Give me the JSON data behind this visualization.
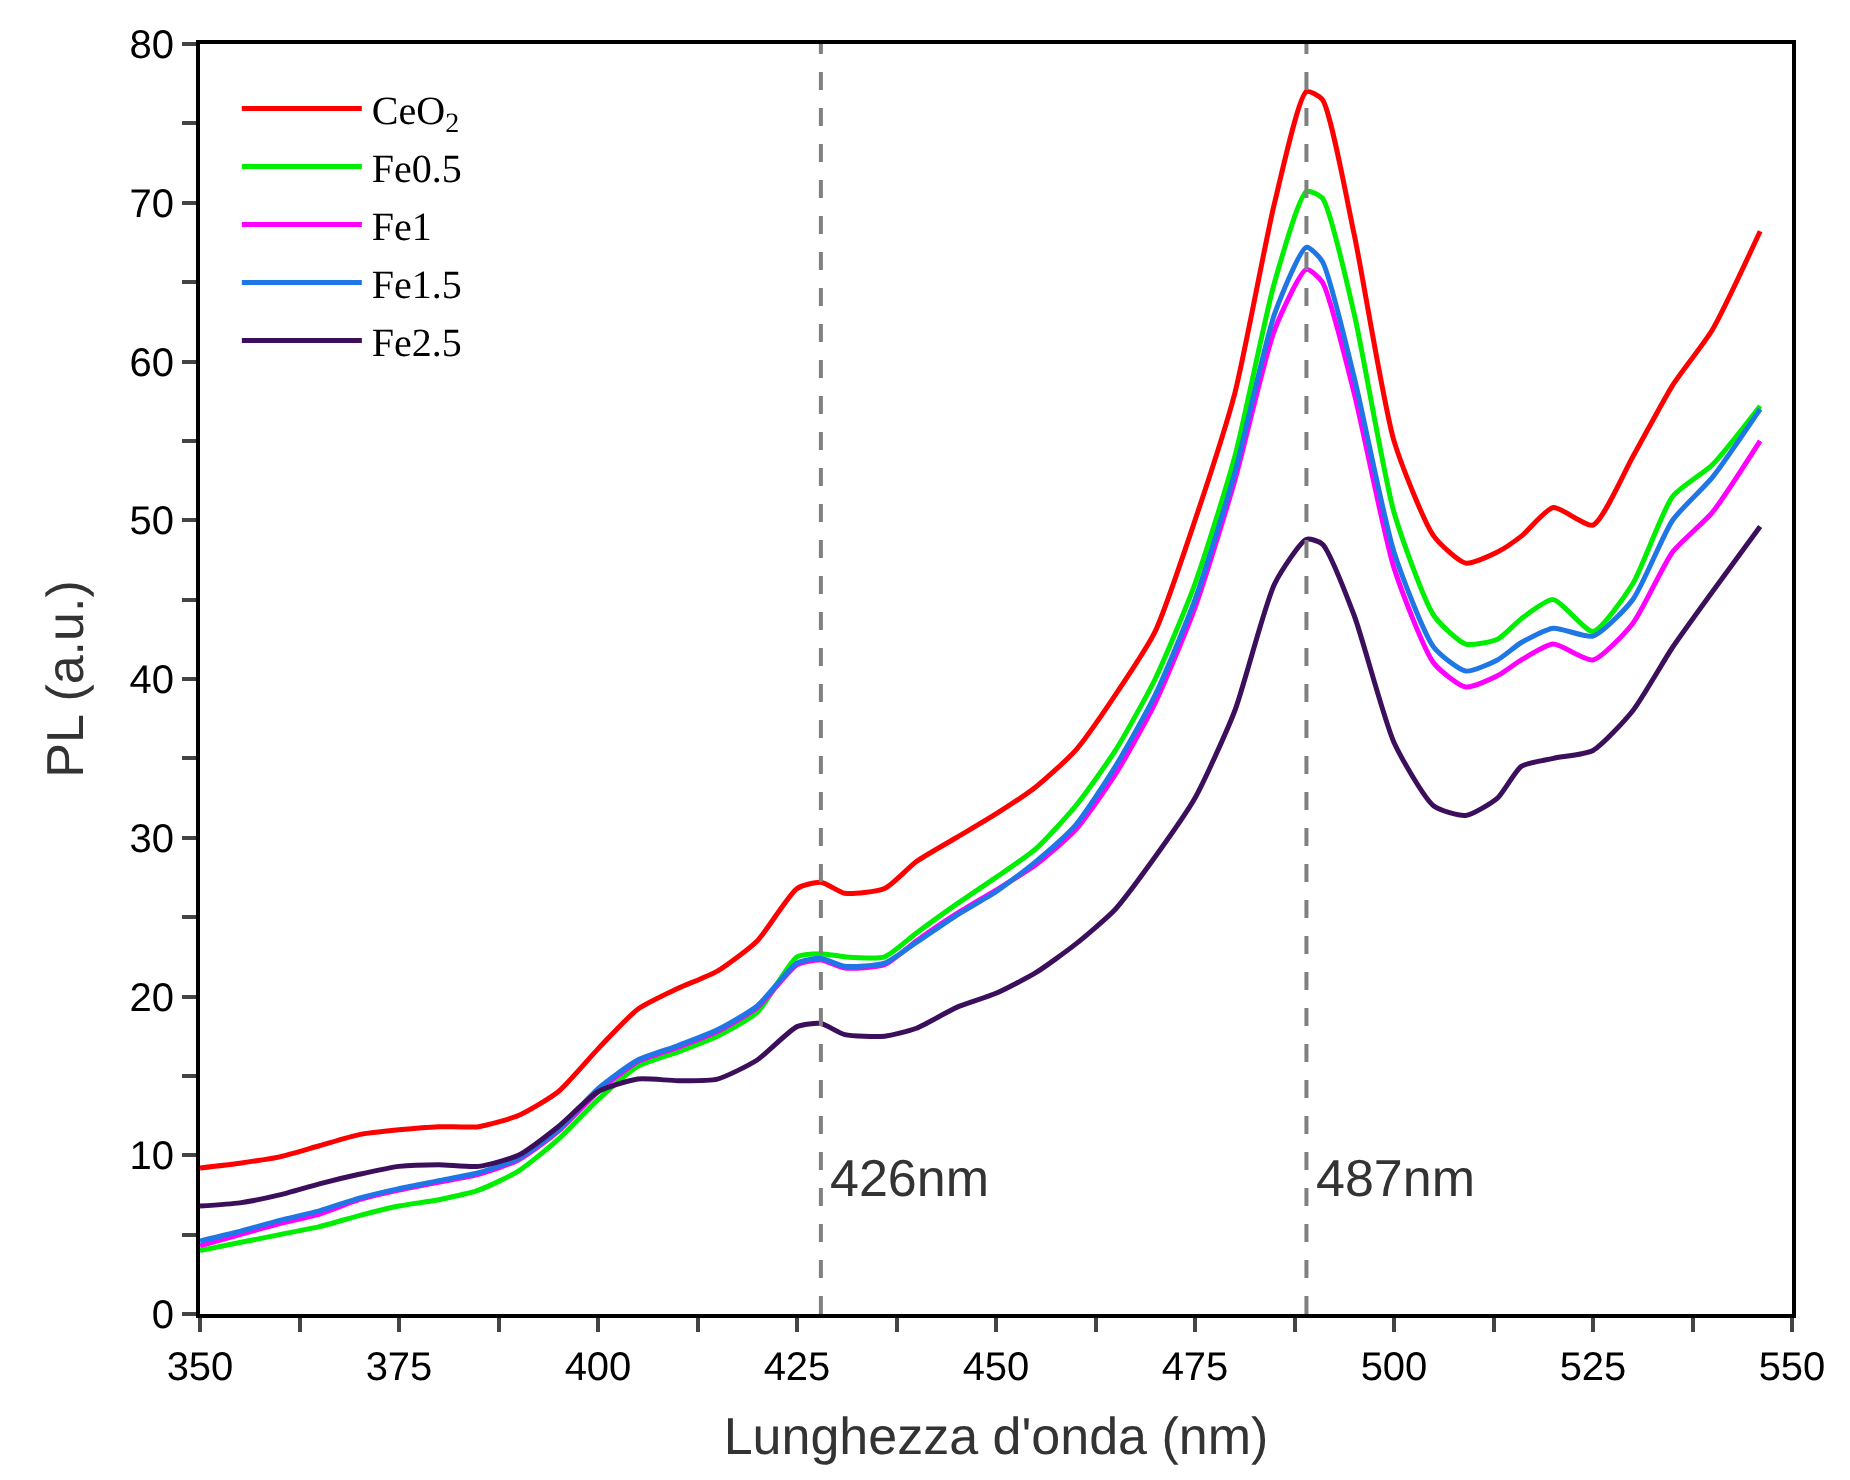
{
  "chart_data": {
    "type": "line",
    "xlabel": "Lunghezza d'onda (nm)",
    "ylabel": "PL (a.u.)",
    "xlim": [
      350,
      550
    ],
    "ylim": [
      0,
      80
    ],
    "xticks": [
      350,
      {
        "value": 362.5,
        "label": null
      },
      375,
      {
        "value": 387.5,
        "label": null
      },
      400,
      {
        "value": 412.5,
        "label": null
      },
      425,
      {
        "value": 437.5,
        "label": null
      },
      450,
      {
        "value": 462.5,
        "label": null
      },
      475,
      {
        "value": 487.5,
        "label": null
      },
      500,
      {
        "value": 512.5,
        "label": null
      },
      525,
      {
        "value": 537.5,
        "label": null
      },
      550
    ],
    "yticks": [
      0,
      {
        "value": 5,
        "label": null
      },
      10,
      {
        "value": 15,
        "label": null
      },
      20,
      {
        "value": 25,
        "label": null
      },
      30,
      {
        "value": 35,
        "label": null
      },
      40,
      {
        "value": 45,
        "label": null
      },
      50,
      {
        "value": 55,
        "label": null
      },
      60,
      {
        "value": 65,
        "label": null
      },
      70,
      {
        "value": 75,
        "label": null
      },
      80
    ],
    "x": [
      350,
      355,
      360,
      365,
      370,
      375,
      380,
      385,
      390,
      395,
      400,
      405,
      410,
      415,
      420,
      425,
      428,
      431,
      436,
      440,
      445,
      450,
      455,
      460,
      465,
      470,
      475,
      480,
      485,
      489,
      491,
      495,
      500,
      505,
      509,
      513,
      516,
      520,
      525,
      530,
      535,
      540,
      546
    ],
    "series": [
      {
        "name": "CeO$_{2}$",
        "color": "#ff0000",
        "values": [
          9.2,
          9.5,
          9.9,
          10.6,
          11.3,
          11.6,
          11.8,
          11.8,
          12.5,
          14,
          16.7,
          19.2,
          20.5,
          21.6,
          23.5,
          26.8,
          27.2,
          26.5,
          26.8,
          28.5,
          30,
          31.5,
          33.2,
          35.5,
          39,
          43,
          50,
          58,
          70,
          77,
          76.5,
          68,
          55,
          49,
          47.3,
          48,
          49,
          50.8,
          49.7,
          54,
          58.5,
          62,
          68.2
        ]
      },
      {
        "name": "Fe0.5",
        "color": "#00ee00",
        "values": [
          4,
          4.5,
          5,
          5.5,
          6.2,
          6.8,
          7.2,
          7.8,
          9,
          11,
          13.5,
          15.6,
          16.5,
          17.5,
          19,
          22.5,
          22.7,
          22.5,
          22.5,
          24,
          25.8,
          27.5,
          29.3,
          32,
          35.5,
          40,
          46,
          54,
          65,
          70.7,
          70.3,
          63,
          50.5,
          44,
          42.2,
          42.5,
          43.8,
          45,
          43,
          46,
          51.5,
          53.5,
          57.2
        ]
      },
      {
        "name": "Fe1",
        "color": "#ff00ff",
        "values": [
          4.3,
          5,
          5.7,
          6.3,
          7.2,
          7.8,
          8.3,
          8.8,
          9.7,
          11.5,
          14,
          15.9,
          16.8,
          17.8,
          19.3,
          22,
          22.3,
          21.8,
          22,
          23.5,
          25.2,
          26.7,
          28.3,
          30.5,
          34,
          38.5,
          44.5,
          52.5,
          62,
          65.8,
          65,
          58,
          47,
          41,
          39.5,
          40.2,
          41.2,
          42.2,
          41.2,
          43.5,
          48,
          50.5,
          55
        ]
      },
      {
        "name": "Fe1.5",
        "color": "#1f77e6",
        "values": [
          4.6,
          5.2,
          5.9,
          6.5,
          7.3,
          7.9,
          8.4,
          8.9,
          9.8,
          11.6,
          14.2,
          16,
          16.9,
          17.9,
          19.4,
          22.1,
          22.4,
          21.9,
          22.1,
          23.4,
          25.1,
          26.6,
          28.5,
          30.8,
          34.5,
          39,
          45,
          53,
          63,
          67.2,
          66.3,
          59,
          48,
          42,
          40.5,
          41.2,
          42.3,
          43.2,
          42.7,
          45,
          50,
          52.7,
          57
        ]
      },
      {
        "name": "Fe2.5",
        "color": "#3b0f5c",
        "values": [
          6.8,
          7,
          7.5,
          8.2,
          8.8,
          9.3,
          9.4,
          9.3,
          10,
          11.8,
          14,
          14.8,
          14.7,
          14.8,
          16,
          18.1,
          18.3,
          17.6,
          17.5,
          18,
          19.3,
          20.2,
          21.5,
          23.3,
          25.5,
          28.8,
          32.5,
          38,
          46,
          48.8,
          48.5,
          44,
          36,
          32,
          31.4,
          32.5,
          34.5,
          35,
          35.5,
          38,
          42,
          45.5,
          49.6
        ]
      }
    ],
    "ref_lines": [
      {
        "axis": "x",
        "value": 428,
        "label": "426nm",
        "color": "#808080",
        "line_style": "dashed"
      },
      {
        "axis": "x",
        "value": 489,
        "label": "487nm",
        "color": "#808080",
        "line_style": "dashed"
      }
    ],
    "legend": "top left",
    "marker": "none",
    "line_style": "solid"
  }
}
